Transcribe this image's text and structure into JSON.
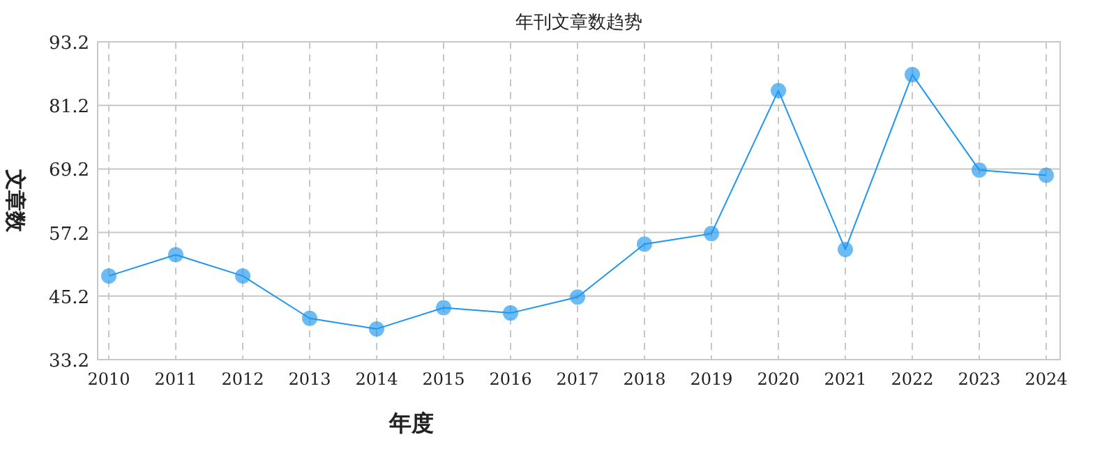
{
  "chart_data": {
    "type": "line",
    "title": "年刊文章数趋势",
    "xlabel": "年度",
    "ylabel": "文章数",
    "categories": [
      "2010",
      "2011",
      "2012",
      "2013",
      "2014",
      "2015",
      "2016",
      "2017",
      "2018",
      "2019",
      "2020",
      "2021",
      "2022",
      "2023",
      "2024"
    ],
    "series": [
      {
        "color": "#1e96f0",
        "values": [
          49,
          53,
          49,
          41,
          39,
          43,
          42,
          45,
          55,
          57,
          84,
          54,
          87,
          69,
          68
        ]
      }
    ],
    "ylim": [
      33.2,
      93.2
    ],
    "yticks": [
      33.2,
      45.2,
      57.2,
      69.2,
      81.2,
      93.2
    ],
    "grid": true,
    "marker": "circle",
    "line_style": "solid"
  }
}
